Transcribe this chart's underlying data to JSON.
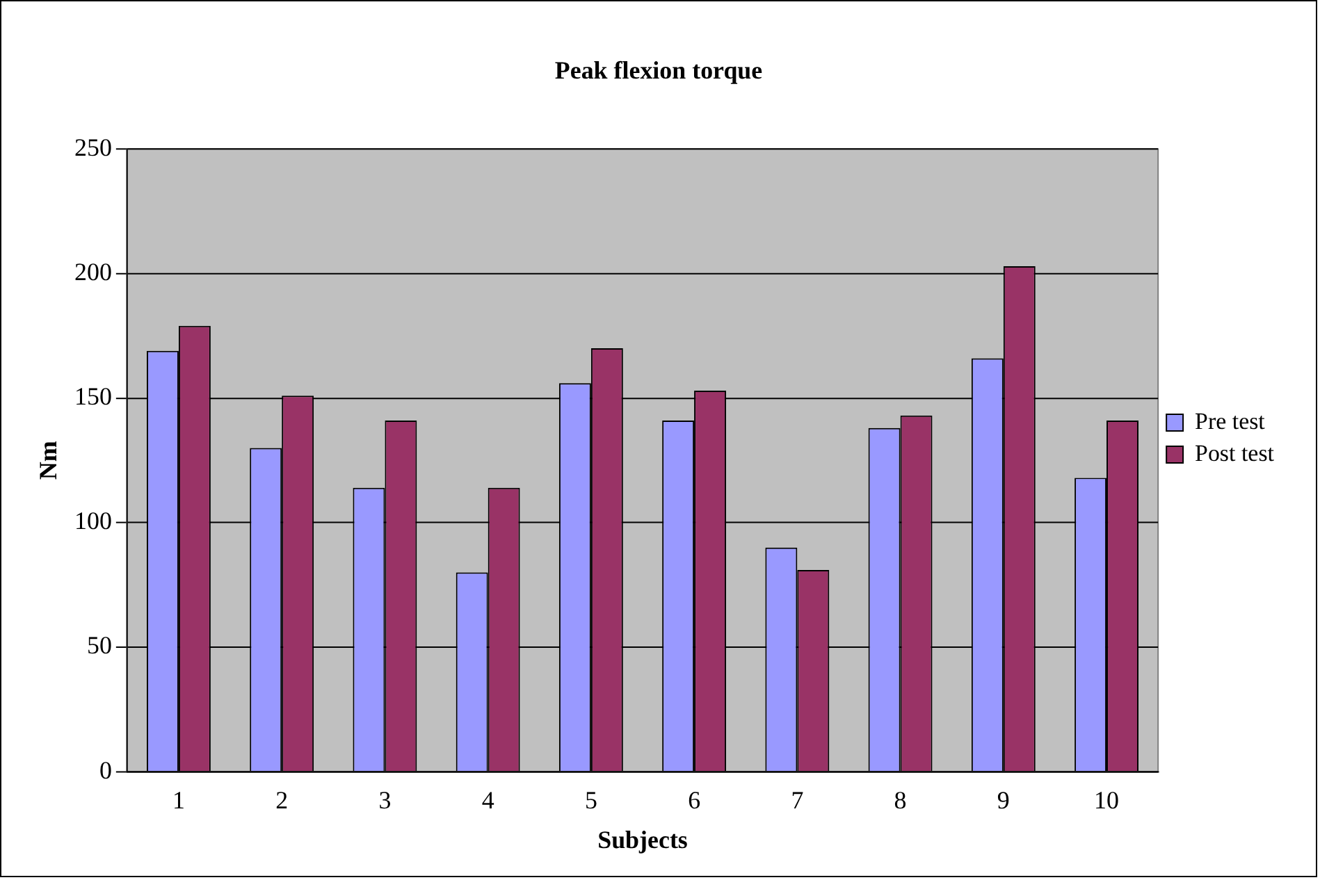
{
  "chart_data": {
    "type": "bar",
    "title": "Peak flexion torque",
    "xlabel": "Subjects",
    "ylabel": "Nm",
    "categories": [
      "1",
      "2",
      "3",
      "4",
      "5",
      "6",
      "7",
      "8",
      "9",
      "10"
    ],
    "series": [
      {
        "name": "Pre test",
        "color": "#9999ff",
        "values": [
          169,
          130,
          114,
          80,
          156,
          141,
          90,
          138,
          166,
          118
        ]
      },
      {
        "name": "Post test",
        "color": "#993366",
        "values": [
          179,
          151,
          141,
          114,
          170,
          153,
          81,
          143,
          203,
          141
        ]
      }
    ],
    "ylim": [
      0,
      250
    ],
    "yticks": [
      0,
      50,
      100,
      150,
      200,
      250
    ],
    "grid": "y",
    "legend": "right"
  }
}
